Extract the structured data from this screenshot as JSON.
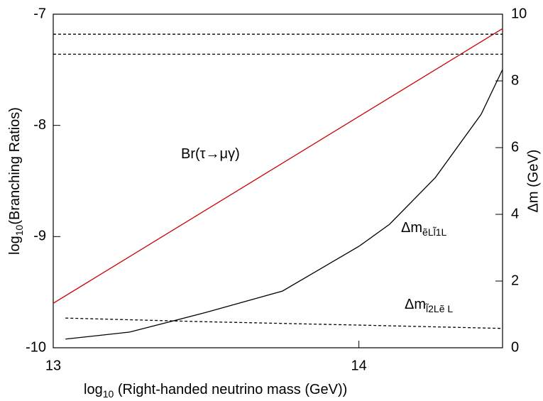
{
  "chart_data": {
    "type": "line",
    "x_label": {
      "text": "log",
      "sub": "10",
      "rest": " (Right-handed neutrino mass (GeV))"
    },
    "y_label": {
      "text": "log",
      "sub": "10",
      "rest": "(Branching Ratios)"
    },
    "y2_label": "Δm (GeV)",
    "xlim": [
      13,
      14.47
    ],
    "xticks": [
      13,
      14
    ],
    "ylim": [
      -10,
      -7
    ],
    "yticks": [
      -10,
      -9,
      -8,
      -7
    ],
    "y2lim": [
      0,
      10
    ],
    "y2ticks": [
      0,
      2,
      4,
      6,
      8,
      10
    ],
    "series": [
      {
        "color": "#cc0000",
        "dash": false,
        "x": [
          13,
          14.47
        ],
        "values": [
          -9.6,
          -7.13
        ]
      },
      {
        "color": "#000000",
        "dash": true,
        "x": [
          13,
          14.47
        ],
        "values": [
          -7.18,
          -7.18
        ]
      },
      {
        "color": "#000000",
        "dash": true,
        "x": [
          13,
          14.47
        ],
        "values": [
          -7.36,
          -7.36
        ]
      },
      {
        "color": "#000000",
        "dash": false,
        "axis": "y2",
        "x": [
          13.04,
          13.25,
          13.5,
          13.75,
          14,
          14.1,
          14.25,
          14.4,
          14.47
        ],
        "values": [
          0.26,
          0.47,
          1.06,
          1.7,
          3.04,
          3.7,
          5.1,
          7.0,
          8.34
        ]
      },
      {
        "color": "#000000",
        "dash": true,
        "axis": "y2",
        "x": [
          13.04,
          13.5,
          14,
          14.47
        ],
        "values": [
          0.89,
          0.78,
          0.68,
          0.58
        ]
      }
    ],
    "annotations": [
      {
        "text": "Br(τ→μγ)",
        "sub": ""
      },
      {
        "text": "Δm",
        "sub": "ẽLl̃1L"
      },
      {
        "text": "Δm",
        "sub": "l̃2Lẽ L"
      }
    ]
  }
}
